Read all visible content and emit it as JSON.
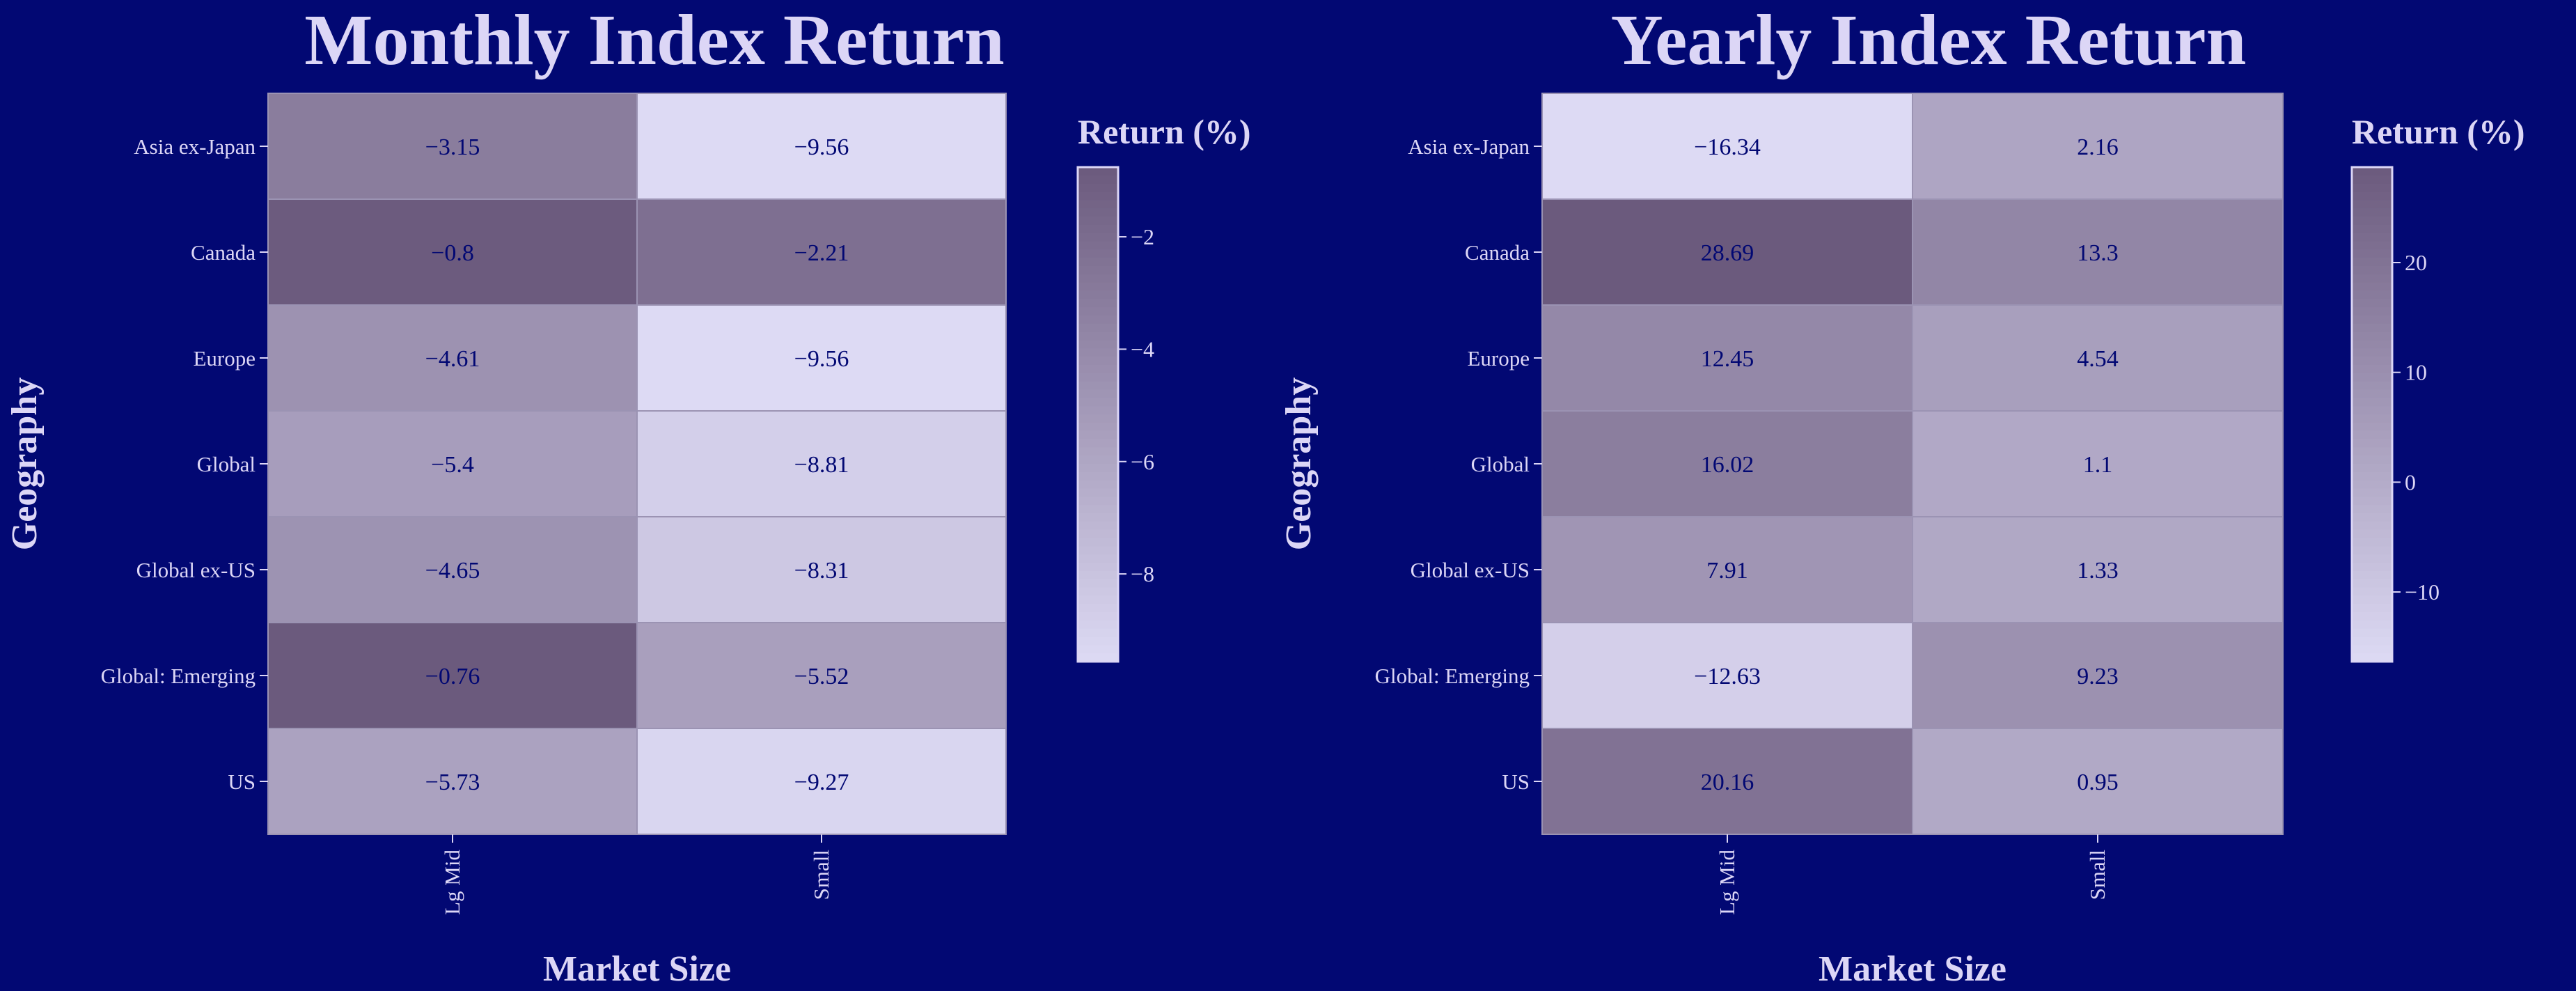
{
  "colors": {
    "background": "#020873",
    "text": "#dcd6f6",
    "cell_text": "#020873",
    "scale_low": "#dddaf4",
    "scale_high": "#6b5a7d",
    "cell_border": "#9b93b3"
  },
  "chart_data": [
    {
      "type": "heatmap",
      "title": "Monthly Index Return",
      "xlabel": "Market Size",
      "ylabel": "Geography",
      "x_categories": [
        "Lg Mid",
        "Small"
      ],
      "y_categories": [
        "Asia ex-Japan",
        "Canada",
        "Europe",
        "Global",
        "Global ex-US",
        "Global: Emerging",
        "US"
      ],
      "values": [
        [
          -3.15,
          -9.56
        ],
        [
          -0.8,
          -2.21
        ],
        [
          -4.61,
          -9.56
        ],
        [
          -5.4,
          -8.81
        ],
        [
          -4.65,
          -8.31
        ],
        [
          -0.76,
          -5.52
        ],
        [
          -5.73,
          -9.27
        ]
      ],
      "value_labels": [
        [
          "−3.15",
          "−9.56"
        ],
        [
          "−0.8",
          "−2.21"
        ],
        [
          "−4.61",
          "−9.56"
        ],
        [
          "−5.4",
          "−8.81"
        ],
        [
          "−4.65",
          "−8.31"
        ],
        [
          "−0.76",
          "−5.52"
        ],
        [
          "−5.73",
          "−9.27"
        ]
      ],
      "colorbar": {
        "title": "Return (%)",
        "range": [
          -9.56,
          -0.76
        ],
        "ticks": [
          -2,
          -4,
          -6,
          -8
        ],
        "tick_labels": [
          "−2",
          "−4",
          "−6",
          "−8"
        ]
      }
    },
    {
      "type": "heatmap",
      "title": "Yearly Index Return",
      "xlabel": "Market Size",
      "ylabel": "Geography",
      "x_categories": [
        "Lg Mid",
        "Small"
      ],
      "y_categories": [
        "Asia ex-Japan",
        "Canada",
        "Europe",
        "Global",
        "Global ex-US",
        "Global: Emerging",
        "US"
      ],
      "values": [
        [
          -16.34,
          2.16
        ],
        [
          28.69,
          13.3
        ],
        [
          12.45,
          4.54
        ],
        [
          16.02,
          1.1
        ],
        [
          7.91,
          1.33
        ],
        [
          -12.63,
          9.23
        ],
        [
          20.16,
          0.95
        ]
      ],
      "value_labels": [
        [
          "−16.34",
          "2.16"
        ],
        [
          "28.69",
          "13.3"
        ],
        [
          "12.45",
          "4.54"
        ],
        [
          "16.02",
          "1.1"
        ],
        [
          "7.91",
          "1.33"
        ],
        [
          "−12.63",
          "9.23"
        ],
        [
          "20.16",
          "0.95"
        ]
      ],
      "colorbar": {
        "title": "Return (%)",
        "range": [
          -16.34,
          28.69
        ],
        "ticks": [
          20,
          10,
          0,
          -10
        ],
        "tick_labels": [
          "20",
          "10",
          "0",
          "−10"
        ]
      }
    }
  ]
}
